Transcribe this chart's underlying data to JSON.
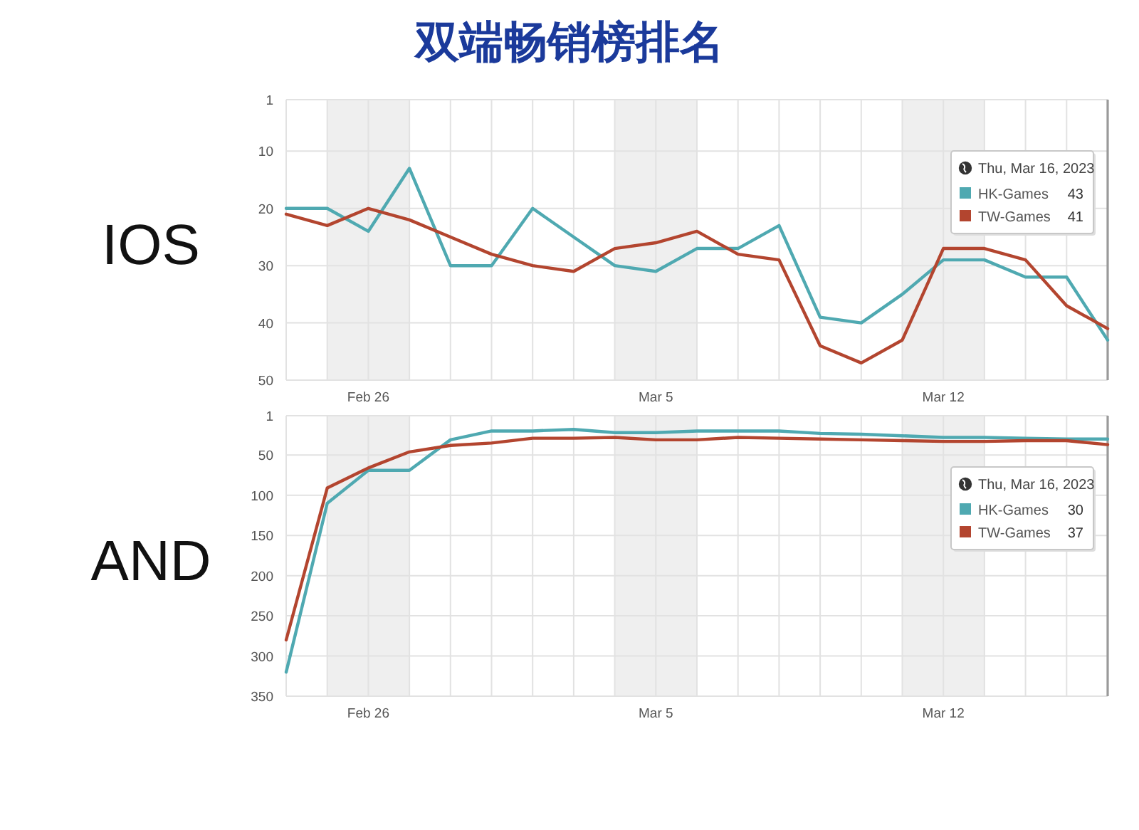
{
  "chart_data": [
    {
      "type": "line",
      "title": "双端畅销榜排名",
      "ylabel": "IOS",
      "x": [
        "2023-02-24",
        "2023-02-25",
        "2023-02-26",
        "2023-02-27",
        "2023-02-28",
        "2023-03-01",
        "2023-03-02",
        "2023-03-03",
        "2023-03-04",
        "2023-03-05",
        "2023-03-06",
        "2023-03-07",
        "2023-03-08",
        "2023-03-09",
        "2023-03-10",
        "2023-03-11",
        "2023-03-12",
        "2023-03-13",
        "2023-03-14",
        "2023-03-15",
        "2023-03-16"
      ],
      "series": [
        {
          "name": "HK-Games",
          "color": "#4fa9b1",
          "values": [
            20,
            20,
            24,
            13,
            30,
            30,
            20,
            25,
            30,
            31,
            27,
            27,
            23,
            39,
            40,
            35,
            29,
            29,
            32,
            32,
            43
          ]
        },
        {
          "name": "TW-Games",
          "color": "#b3452f",
          "values": [
            21,
            23,
            20,
            22,
            25,
            28,
            30,
            31,
            27,
            26,
            24,
            28,
            29,
            44,
            47,
            43,
            27,
            27,
            29,
            37,
            41
          ]
        }
      ],
      "annotations": [
        "43",
        "41"
      ],
      "xlim": [
        "2023-02-24",
        "2023-03-16"
      ],
      "xticks": [
        {
          "value": "2023-02-24",
          "label": null
        },
        {
          "value": "2023-02-25",
          "label": null
        },
        {
          "value": "2023-02-26",
          "label": "Feb 26"
        },
        {
          "value": "2023-02-27",
          "label": null
        },
        {
          "value": "2023-02-28",
          "label": null
        },
        {
          "value": "2023-03-01",
          "label": null
        },
        {
          "value": "2023-03-02",
          "label": null
        },
        {
          "value": "2023-03-03",
          "label": null
        },
        {
          "value": "2023-03-04",
          "label": null
        },
        {
          "value": "2023-03-05",
          "label": "Mar 5"
        },
        {
          "value": "2023-03-06",
          "label": null
        },
        {
          "value": "2023-03-07",
          "label": null
        },
        {
          "value": "2023-03-08",
          "label": null
        },
        {
          "value": "2023-03-09",
          "label": null
        },
        {
          "value": "2023-03-10",
          "label": null
        },
        {
          "value": "2023-03-11",
          "label": null
        },
        {
          "value": "2023-03-12",
          "label": "Mar 12"
        },
        {
          "value": "2023-03-13",
          "label": null
        },
        {
          "value": "2023-03-14",
          "label": null
        },
        {
          "value": "2023-03-15",
          "label": null
        },
        {
          "value": "2023-03-16",
          "label": null
        }
      ],
      "ylim": [
        50,
        1
      ],
      "yticks": [
        1,
        10,
        20,
        30,
        40,
        50
      ],
      "grid": true,
      "legend": "right",
      "legend_title": "Thu, Mar 16, 2023",
      "bands": [
        {
          "axis": "x",
          "from": "2023-02-25",
          "to": "2023-02-27",
          "color": "#efefef"
        },
        {
          "axis": "x",
          "from": "2023-03-04",
          "to": "2023-03-06",
          "color": "#efefef"
        },
        {
          "axis": "x",
          "from": "2023-03-11",
          "to": "2023-03-13",
          "color": "#efefef"
        }
      ],
      "ref_lines": [
        {
          "axis": "x",
          "value": "2023-03-16",
          "color": "#9a9a9a"
        }
      ]
    },
    {
      "type": "line",
      "ylabel": "AND",
      "x": [
        "2023-02-24",
        "2023-02-25",
        "2023-02-26",
        "2023-02-27",
        "2023-02-28",
        "2023-03-01",
        "2023-03-02",
        "2023-03-03",
        "2023-03-04",
        "2023-03-05",
        "2023-03-06",
        "2023-03-07",
        "2023-03-08",
        "2023-03-09",
        "2023-03-10",
        "2023-03-11",
        "2023-03-12",
        "2023-03-13",
        "2023-03-14",
        "2023-03-15",
        "2023-03-16"
      ],
      "series": [
        {
          "name": "HK-Games",
          "color": "#4fa9b1",
          "values": [
            320,
            110,
            69,
            69,
            31,
            20,
            20,
            18,
            22,
            22,
            20,
            20,
            20,
            23,
            24,
            26,
            28,
            28,
            29,
            30,
            30
          ]
        },
        {
          "name": "TW-Games",
          "color": "#b3452f",
          "values": [
            280,
            91,
            66,
            46,
            38,
            35,
            29,
            29,
            28,
            31,
            31,
            28,
            29,
            30,
            31,
            32,
            33,
            33,
            32,
            32,
            37
          ]
        }
      ],
      "annotations": [
        "30",
        "37"
      ],
      "xlim": [
        "2023-02-24",
        "2023-03-16"
      ],
      "xticks": [
        {
          "value": "2023-02-24",
          "label": null
        },
        {
          "value": "2023-02-25",
          "label": null
        },
        {
          "value": "2023-02-26",
          "label": "Feb 26"
        },
        {
          "value": "2023-02-27",
          "label": null
        },
        {
          "value": "2023-02-28",
          "label": null
        },
        {
          "value": "2023-03-01",
          "label": null
        },
        {
          "value": "2023-03-02",
          "label": null
        },
        {
          "value": "2023-03-03",
          "label": null
        },
        {
          "value": "2023-03-04",
          "label": null
        },
        {
          "value": "2023-03-05",
          "label": "Mar 5"
        },
        {
          "value": "2023-03-06",
          "label": null
        },
        {
          "value": "2023-03-07",
          "label": null
        },
        {
          "value": "2023-03-08",
          "label": null
        },
        {
          "value": "2023-03-09",
          "label": null
        },
        {
          "value": "2023-03-10",
          "label": null
        },
        {
          "value": "2023-03-11",
          "label": null
        },
        {
          "value": "2023-03-12",
          "label": "Mar 12"
        },
        {
          "value": "2023-03-13",
          "label": null
        },
        {
          "value": "2023-03-14",
          "label": null
        },
        {
          "value": "2023-03-15",
          "label": null
        },
        {
          "value": "2023-03-16",
          "label": null
        }
      ],
      "ylim": [
        350,
        1
      ],
      "yticks": [
        1,
        50,
        100,
        150,
        200,
        250,
        300,
        350
      ],
      "grid": true,
      "legend": "right",
      "legend_title": "Thu, Mar 16, 2023",
      "bands": [
        {
          "axis": "x",
          "from": "2023-02-25",
          "to": "2023-02-27",
          "color": "#efefef"
        },
        {
          "axis": "x",
          "from": "2023-03-04",
          "to": "2023-03-06",
          "color": "#efefef"
        },
        {
          "axis": "x",
          "from": "2023-03-11",
          "to": "2023-03-13",
          "color": "#efefef"
        }
      ],
      "ref_lines": [
        {
          "axis": "x",
          "value": "2023-03-16",
          "color": "#9a9a9a"
        }
      ]
    }
  ]
}
